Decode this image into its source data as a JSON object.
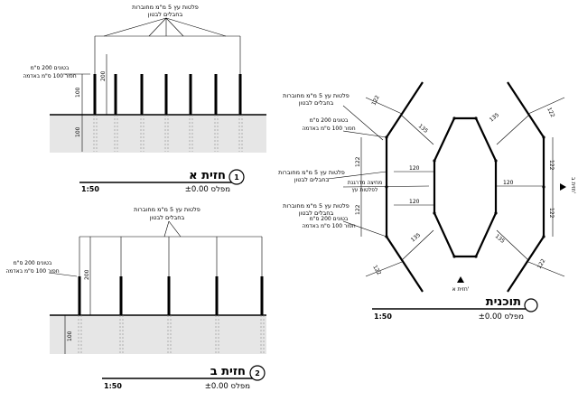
{
  "elevation_a": {
    "title": "חזית א",
    "number": "1",
    "scale": "1:50",
    "datum": "מפלס ±0.00",
    "rail_note_1": "פלטות עץ 5 מ\"מ מחוברות",
    "rail_note_2": "בחבלים לבטון",
    "post_note_1": "בטונים 200 ס\"מ",
    "post_note_2": "חפור 100 ס\"מ באדמה",
    "dim_above": "100",
    "dim_below": "100",
    "dim_post": "200"
  },
  "elevation_b": {
    "title": "חזית ב",
    "number": "2",
    "scale": "1:50",
    "datum": "מפלס ±0.00",
    "rail_note_1": "פלטות עץ 5 מ\"מ מחוברות",
    "rail_note_2": "בחבלים לבטון",
    "post_note_1": "בטונים 200 ס\"מ",
    "post_note_2": "חפור 100 ס\"מ באדמה",
    "dim_post": "200",
    "dim_below": "100"
  },
  "plan": {
    "title": "תוכנית",
    "scale": "1:50",
    "datum": "מפלס ±0.00",
    "note_rails_1": "פלטות עץ 5 מ\"מ מחוברות",
    "note_rails_2": "בחבלים לבטון",
    "note_posts_1": "בטונים 200 ס\"מ",
    "note_posts_2": "חפור 100 ס\"מ באדמה",
    "note_strip_1": "מחיצה מדרגנת",
    "note_strip_2": "לפלטות עץ",
    "note_posts_b_1": "בטונים 200 ס\"מ",
    "note_posts_b_2": "חפור 100 ס\"מ באדמה",
    "section_a": "חזית א'",
    "section_b": "חזית ב'",
    "dims": {
      "d122_tl": "122",
      "d135_tl": "135",
      "d135_tr": "135",
      "d122_tr": "122",
      "d122_l1": "122",
      "d122_l2": "122",
      "d122_r1": "122",
      "d122_r2": "122",
      "d120_top": "120",
      "d120_mid": "120",
      "d120_right": "120",
      "d135_bl": "135",
      "d135_br": "135",
      "d122_bl": "122",
      "d122_br": "122"
    }
  }
}
